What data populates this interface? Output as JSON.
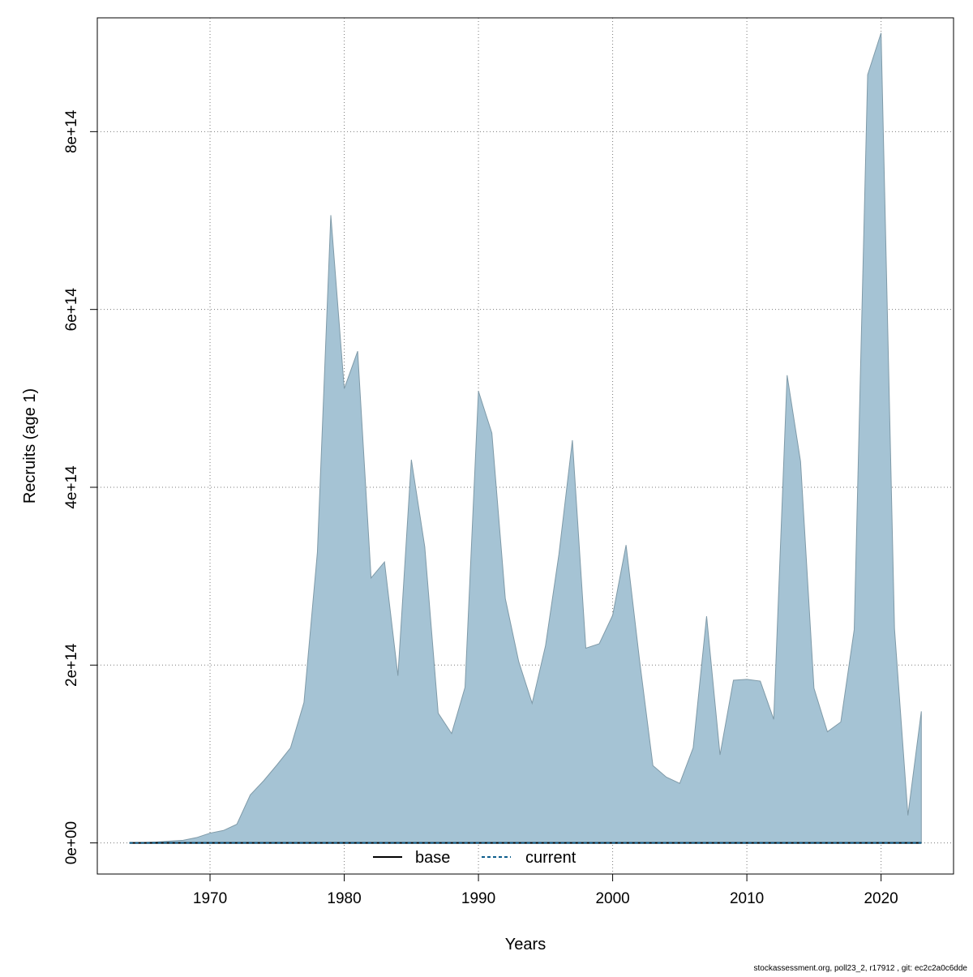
{
  "chart_data": {
    "type": "area",
    "xlabel": "Years",
    "ylabel": "Recruits (age 1)",
    "xlim": [
      1961.6,
      2025.4
    ],
    "ylim": [
      -35000000000000.0,
      928000000000000.0
    ],
    "x_ticks": [
      {
        "value": 1970,
        "label": "1970"
      },
      {
        "value": 1980,
        "label": "1980"
      },
      {
        "value": 1990,
        "label": "1990"
      },
      {
        "value": 2000,
        "label": "2000"
      },
      {
        "value": 2010,
        "label": "2010"
      },
      {
        "value": 2020,
        "label": "2020"
      }
    ],
    "y_ticks": [
      {
        "value": 0,
        "label": "0e+00"
      },
      {
        "value": 200000000000000.0,
        "label": "2e+14"
      },
      {
        "value": 400000000000000.0,
        "label": "4e+14"
      },
      {
        "value": 600000000000000.0,
        "label": "6e+14"
      },
      {
        "value": 800000000000000.0,
        "label": "8e+14"
      }
    ],
    "grid": true,
    "legend_position": "bottom-center",
    "legend": [
      {
        "label": "base",
        "color": "#000000",
        "dash": "solid"
      },
      {
        "label": "current",
        "color": "#0d5e8c",
        "dash": "dashed"
      }
    ],
    "area_fill": "#a5c3d4",
    "area_stroke": "#7f9aa8",
    "x": [
      1964,
      1965,
      1966,
      1967,
      1968,
      1969,
      1970,
      1971,
      1972,
      1973,
      1974,
      1975,
      1976,
      1977,
      1978,
      1979,
      1980,
      1981,
      1982,
      1983,
      1984,
      1985,
      1986,
      1987,
      1988,
      1989,
      1990,
      1991,
      1992,
      1993,
      1994,
      1995,
      1996,
      1997,
      1998,
      1999,
      2000,
      2001,
      2002,
      2003,
      2004,
      2005,
      2006,
      2007,
      2008,
      2009,
      2010,
      2011,
      2012,
      2013,
      2014,
      2015,
      2016,
      2017,
      2018,
      2019,
      2020,
      2021,
      2022,
      2023
    ],
    "series": [
      {
        "name": "base",
        "values": [
          0,
          500000000000.0,
          1000000000000.0,
          2000000000000.0,
          3000000000000.0,
          6000000000000.0,
          11000000000000.0,
          14000000000000.0,
          21000000000000.0,
          54000000000000.0,
          70000000000000.0,
          88000000000000.0,
          107000000000000.0,
          158000000000000.0,
          327000000000000.0,
          706000000000000.0,
          511000000000000.0,
          553000000000000.0,
          298000000000000.0,
          316000000000000.0,
          188000000000000.0,
          431000000000000.0,
          333000000000000.0,
          146000000000000.0,
          123000000000000.0,
          175000000000000.0,
          508000000000000.0,
          461000000000000.0,
          275000000000000.0,
          204000000000000.0,
          157000000000000.0,
          222000000000000.0,
          325000000000000.0,
          453000000000000.0,
          219000000000000.0,
          224000000000000.0,
          256000000000000.0,
          335000000000000.0,
          206000000000000.0,
          87000000000000.0,
          74000000000000.0,
          67000000000000.0,
          107000000000000.0,
          255000000000000.0,
          99000000000000.0,
          183000000000000.0,
          184000000000000.0,
          182000000000000.0,
          139000000000000.0,
          526000000000000.0,
          429000000000000.0,
          174000000000000.0,
          125000000000000.0,
          136000000000000.0,
          240000000000000.0,
          864000000000000.0,
          911000000000000.0,
          241000000000000.0,
          31000000000000.0,
          148000000000000.0
        ]
      },
      {
        "name": "current",
        "values": [
          0,
          0,
          0,
          0,
          0,
          0,
          0,
          0,
          0,
          0,
          0,
          0,
          0,
          0,
          0,
          0,
          0,
          0,
          0,
          0,
          0,
          0,
          0,
          0,
          0,
          0,
          0,
          0,
          0,
          0,
          0,
          0,
          0,
          0,
          0,
          0,
          0,
          0,
          0,
          0,
          0,
          0,
          0,
          0,
          0,
          0,
          0,
          0,
          0,
          0,
          0,
          0,
          0,
          0,
          0,
          0,
          0,
          0,
          0,
          0
        ]
      }
    ]
  },
  "footer": "stockassessment.org, poll23_2, r17912 , git: ec2c2a0c6dde"
}
